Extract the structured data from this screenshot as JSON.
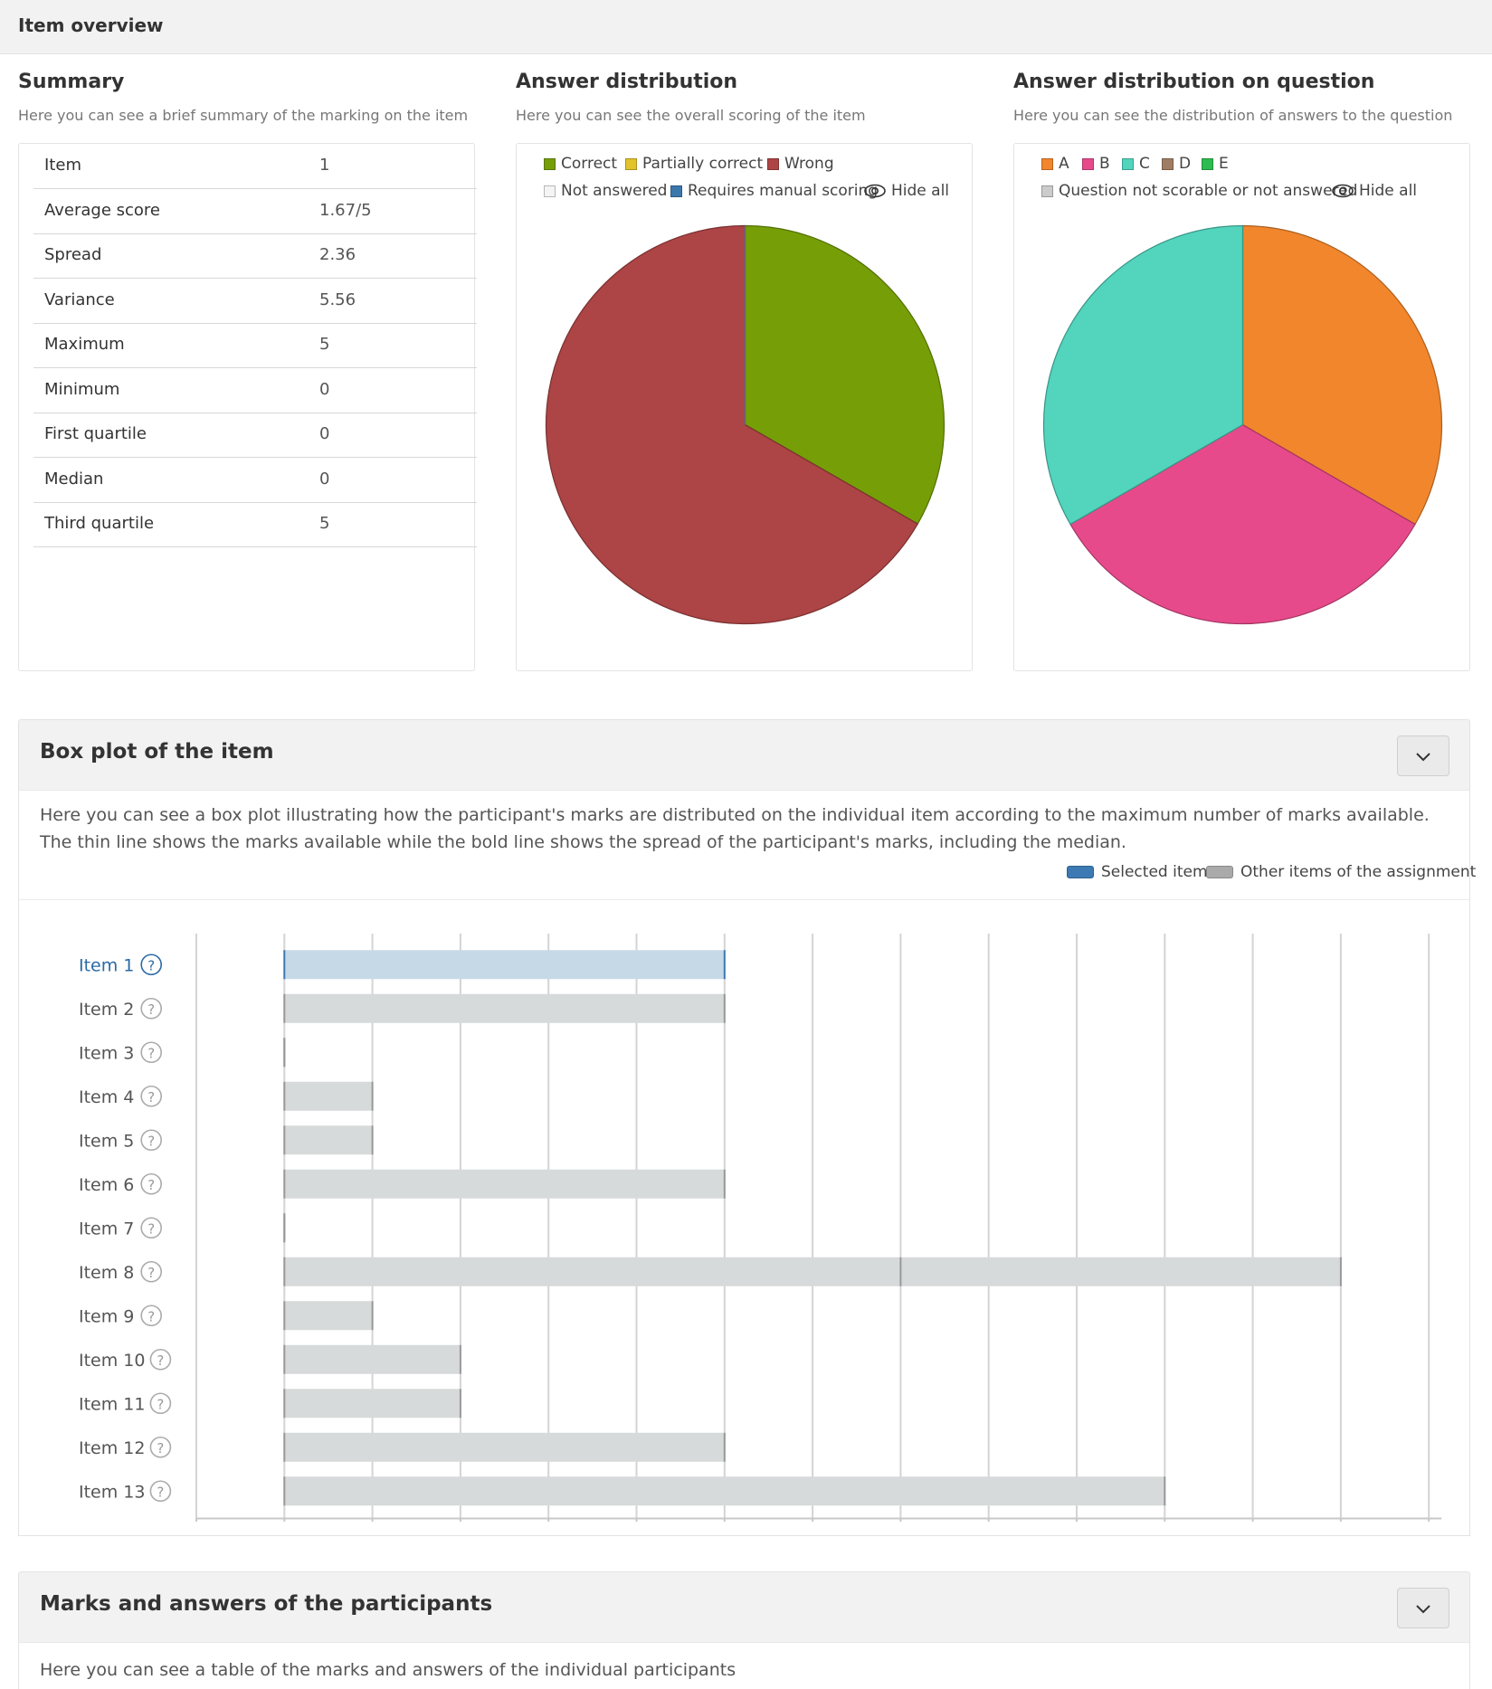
{
  "header": {
    "title": "Item overview"
  },
  "summary": {
    "title": "Summary",
    "subtitle": "Here you can see a brief summary of the marking on the item",
    "rows": [
      {
        "label": "Item",
        "value": "1"
      },
      {
        "label": "Average score",
        "value": "1.67/5"
      },
      {
        "label": "Spread",
        "value": "2.36"
      },
      {
        "label": "Variance",
        "value": "5.56"
      },
      {
        "label": "Maximum",
        "value": "5"
      },
      {
        "label": "Minimum",
        "value": "0"
      },
      {
        "label": "First quartile",
        "value": "0"
      },
      {
        "label": "Median",
        "value": "0"
      },
      {
        "label": "Third quartile",
        "value": "5"
      }
    ]
  },
  "answer_distribution": {
    "title": "Answer distribution",
    "subtitle": "Here you can see the overall scoring of the item",
    "legend": [
      {
        "label": "Correct",
        "color": "#769e07"
      },
      {
        "label": "Partially correct",
        "color": "#e2c32a"
      },
      {
        "label": "Wrong",
        "color": "#ad4445"
      },
      {
        "label": "Not answered",
        "color": "#f4f4f4"
      },
      {
        "label": "Requires manual scoring",
        "color": "#3b77ab"
      }
    ],
    "hide_all": "Hide all"
  },
  "question_distribution": {
    "title": "Answer distribution on question",
    "subtitle": "Here you can see the distribution of answers to the question",
    "legend": [
      {
        "label": "A",
        "color": "#f1862c"
      },
      {
        "label": "B",
        "color": "#e74a8b"
      },
      {
        "label": "C",
        "color": "#52d4bd"
      },
      {
        "label": "D",
        "color": "#a07d62"
      },
      {
        "label": "E",
        "color": "#2fbb4f"
      },
      {
        "label": "Question not scorable or not answered",
        "color": "#cccccc"
      }
    ],
    "hide_all": "Hide all"
  },
  "boxplot_panel": {
    "title": "Box plot of the item",
    "description": "Here you can see a box plot illustrating how the participant's marks are distributed on the individual item according to the maximum number of marks available. The thin line shows the marks available while the bold line shows the spread of the participant's marks, including the median.",
    "legend_selected": "Selected item",
    "legend_other": "Other items of the assignment",
    "selected_color": "#3d7ab3",
    "other_color": "#aaaaaa",
    "help_glyph": "?"
  },
  "marks_panel": {
    "title": "Marks and answers of the participants",
    "description": "Here you can see a table of the marks and answers of the individual participants"
  },
  "chart_data": [
    {
      "type": "pie",
      "categories": [
        "Correct",
        "Partially correct",
        "Wrong",
        "Not answered",
        "Requires manual scoring"
      ],
      "values": [
        33.3,
        0,
        66.7,
        0,
        0
      ],
      "legend": "top"
    },
    {
      "type": "pie",
      "categories": [
        "A",
        "B",
        "C",
        "D",
        "E",
        "Question not scorable or not answered"
      ],
      "values": [
        33.3,
        33.3,
        33.3,
        0,
        0,
        0
      ],
      "legend": "top"
    },
    {
      "type": "bar",
      "orientation": "horizontal",
      "categories": [
        "Item 1",
        "Item 2",
        "Item 3",
        "Item 4",
        "Item 5",
        "Item 6",
        "Item 7",
        "Item 8",
        "Item 9",
        "Item 10",
        "Item 11",
        "Item 12",
        "Item 13"
      ],
      "series": [
        {
          "values": [
            [
              0,
              5,
              5
            ],
            [
              0,
              5,
              5
            ],
            [
              0,
              0,
              0
            ],
            [
              0,
              1,
              1
            ],
            [
              0,
              1,
              1
            ],
            [
              0,
              5,
              5
            ],
            [
              0,
              0,
              0
            ],
            [
              0,
              12,
              7
            ],
            [
              0,
              1,
              1
            ],
            [
              0,
              2,
              2
            ],
            [
              0,
              2,
              2
            ],
            [
              0,
              5,
              5
            ],
            [
              0,
              10,
              10
            ]
          ]
        }
      ],
      "value_format": "[min, max, marker]",
      "selected_index": 0,
      "xlim": [
        -1,
        13
      ],
      "xticks": [
        -1,
        0,
        1,
        2,
        3,
        4,
        5,
        6,
        7,
        8,
        9,
        10,
        11,
        12,
        13
      ],
      "grid": true
    }
  ]
}
